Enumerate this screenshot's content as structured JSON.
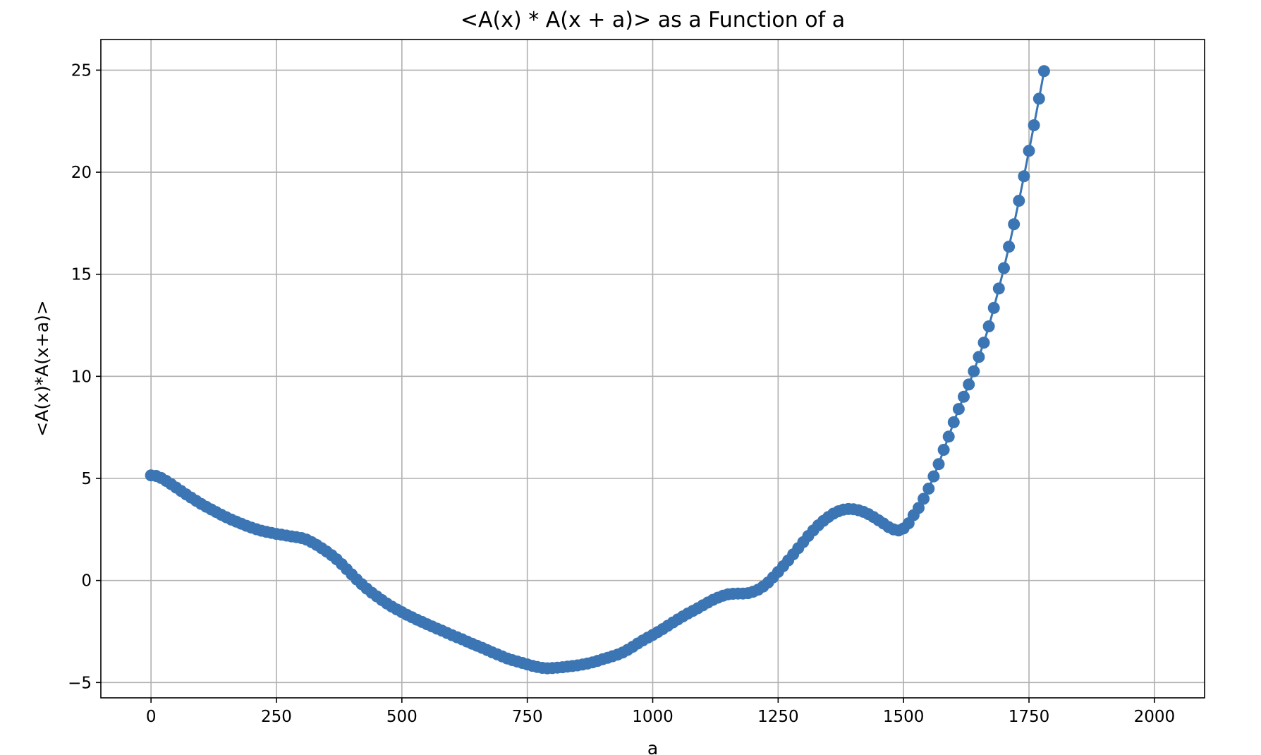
{
  "chart_data": {
    "type": "line",
    "title": "<A(x) * A(x + a)> as a Function of a",
    "xlabel": "a",
    "ylabel": "<A(x)*A(x+a)>",
    "xlim": [
      -100,
      2100
    ],
    "ylim": [
      -5.75,
      26.5
    ],
    "x_ticks": [
      0,
      250,
      500,
      750,
      1000,
      1250,
      1500,
      1750,
      2000
    ],
    "x_tick_labels": [
      "0",
      "250",
      "500",
      "750",
      "1000",
      "1250",
      "1500",
      "1750",
      "2000"
    ],
    "y_ticks": [
      -5,
      0,
      5,
      10,
      15,
      20,
      25
    ],
    "y_tick_labels": [
      "−5",
      "0",
      "5",
      "10",
      "15",
      "20",
      "25"
    ],
    "grid": true,
    "marker": "circle",
    "series": [
      {
        "color": "#3b75b4",
        "step": 10,
        "x_start": 0,
        "values": [
          5.15,
          5.12,
          5.02,
          4.88,
          4.72,
          4.55,
          4.38,
          4.22,
          4.06,
          3.9,
          3.75,
          3.61,
          3.48,
          3.35,
          3.22,
          3.1,
          2.98,
          2.88,
          2.78,
          2.68,
          2.59,
          2.51,
          2.44,
          2.38,
          2.33,
          2.28,
          2.24,
          2.2,
          2.16,
          2.12,
          2.08,
          2.0,
          1.88,
          1.74,
          1.58,
          1.42,
          1.24,
          1.04,
          0.8,
          0.55,
          0.3,
          0.05,
          -0.18,
          -0.4,
          -0.6,
          -0.78,
          -0.96,
          -1.13,
          -1.28,
          -1.42,
          -1.55,
          -1.68,
          -1.8,
          -1.92,
          -2.03,
          -2.14,
          -2.25,
          -2.36,
          -2.46,
          -2.57,
          -2.68,
          -2.78,
          -2.88,
          -2.99,
          -3.1,
          -3.2,
          -3.3,
          -3.41,
          -3.52,
          -3.62,
          -3.72,
          -3.82,
          -3.9,
          -3.97,
          -4.04,
          -4.11,
          -4.18,
          -4.24,
          -4.28,
          -4.3,
          -4.29,
          -4.27,
          -4.25,
          -4.22,
          -4.19,
          -4.16,
          -4.12,
          -4.07,
          -4.01,
          -3.94,
          -3.86,
          -3.79,
          -3.71,
          -3.63,
          -3.53,
          -3.4,
          -3.25,
          -3.09,
          -2.94,
          -2.8,
          -2.67,
          -2.53,
          -2.38,
          -2.22,
          -2.06,
          -1.91,
          -1.76,
          -1.62,
          -1.49,
          -1.36,
          -1.22,
          -1.08,
          -0.95,
          -0.84,
          -0.75,
          -0.68,
          -0.65,
          -0.64,
          -0.64,
          -0.62,
          -0.55,
          -0.45,
          -0.3,
          -0.1,
          0.15,
          0.42,
          0.7,
          0.98,
          1.28,
          1.58,
          1.88,
          2.18,
          2.45,
          2.7,
          2.92,
          3.11,
          3.27,
          3.39,
          3.47,
          3.5,
          3.49,
          3.44,
          3.36,
          3.25,
          3.11,
          2.95,
          2.79,
          2.62,
          2.5,
          2.45,
          2.55,
          2.8,
          3.2,
          3.55,
          4.0,
          4.5,
          5.1,
          5.7,
          6.4,
          7.05,
          7.75,
          8.4,
          9.0,
          9.6,
          10.25,
          10.95,
          11.65,
          12.45,
          13.35,
          14.3,
          15.3,
          16.35,
          17.45,
          18.6,
          19.8,
          21.05,
          22.3,
          23.6,
          24.95
        ]
      }
    ]
  }
}
